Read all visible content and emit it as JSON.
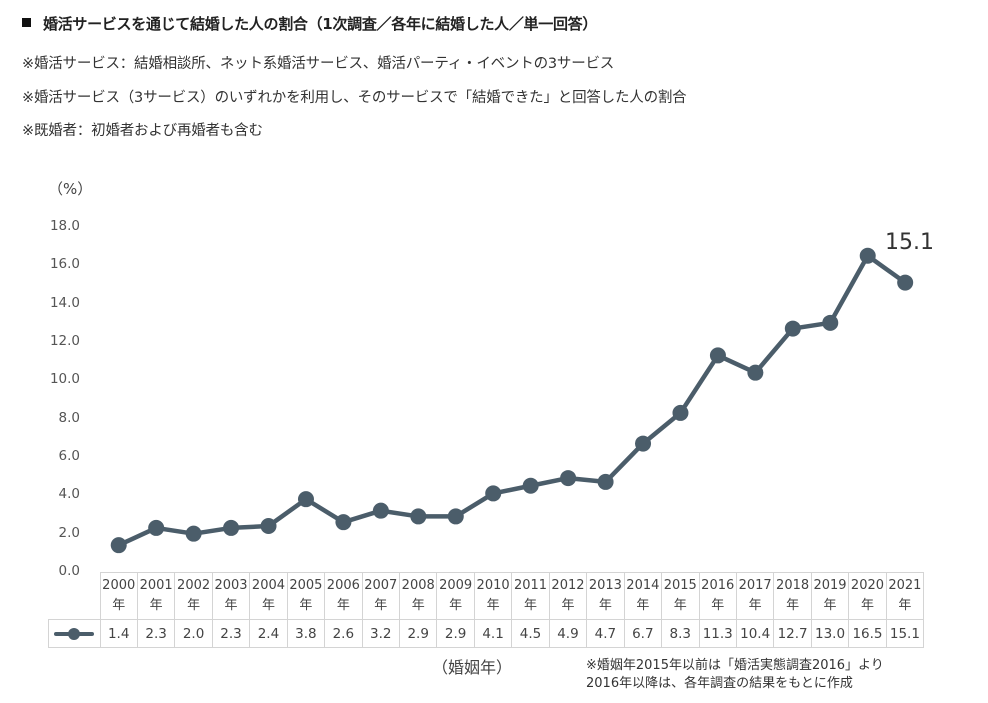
{
  "header": {
    "title": "婚活サービスを通じて結婚した人の割合（1次調査／各年に結婚した人／単一回答）",
    "notes": [
      "※婚活サービス：結婚相談所、ネット系婚活サービス、婚活パーティ・イベントの3サービス",
      "※婚活サービス（3サービス）のいずれかを利用し、そのサービスで「結婚できた」と回答した人の割合",
      "※既婚者：初婚者および再婚者も含む"
    ]
  },
  "axis": {
    "unit_label": "（%）",
    "y_ticks": [
      "18.0",
      "16.0",
      "14.0",
      "12.0",
      "10.0",
      "8.0",
      "6.0",
      "4.0",
      "2.0",
      "0.0"
    ],
    "x_label": "（婚姻年）",
    "year_suffix": "年"
  },
  "callout": {
    "label": "15.1"
  },
  "source_note": {
    "line1": "※婚姻年2015年以前は「婚活実態調査2016」より",
    "line2": "2016年以降は、各年調査の結果をもとに作成"
  },
  "colors": {
    "series": "#4b5d6a",
    "grid_border": "#d4d4d4"
  },
  "chart_data": {
    "type": "line",
    "title": "婚活サービスを通じて結婚した人の割合（1次調査／各年に結婚した人／単一回答）",
    "xlabel": "（婚姻年）",
    "ylabel": "（%）",
    "ylim": [
      0,
      18
    ],
    "y_tick_step": 2,
    "grid": false,
    "legend_position": "data-table",
    "categories": [
      "2000",
      "2001",
      "2002",
      "2003",
      "2004",
      "2005",
      "2006",
      "2007",
      "2008",
      "2009",
      "2010",
      "2011",
      "2012",
      "2013",
      "2014",
      "2015",
      "2016",
      "2017",
      "2018",
      "2019",
      "2020",
      "2021"
    ],
    "series": [
      {
        "name": "婚活サービスを通じて結婚した人の割合",
        "values": [
          1.4,
          2.3,
          2.0,
          2.3,
          2.4,
          3.8,
          2.6,
          3.2,
          2.9,
          2.9,
          4.1,
          4.5,
          4.9,
          4.7,
          6.7,
          8.3,
          11.3,
          10.4,
          12.7,
          13.0,
          16.5,
          15.1
        ]
      }
    ],
    "value_labels": [
      "1.4",
      "2.3",
      "2.0",
      "2.3",
      "2.4",
      "3.8",
      "2.6",
      "3.2",
      "2.9",
      "2.9",
      "4.1",
      "4.5",
      "4.9",
      "4.7",
      "6.7",
      "8.3",
      "11.3",
      "10.4",
      "12.7",
      "13.0",
      "16.5",
      "15.1"
    ],
    "annotations": [
      {
        "x": "2021",
        "text": "15.1"
      }
    ]
  }
}
